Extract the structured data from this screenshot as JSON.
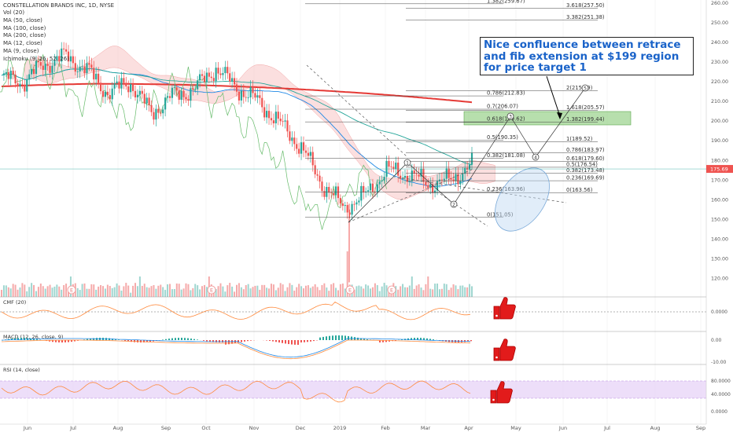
{
  "symbol_header": "CONSTELLATION BRANDS INC, 1D, NYSE",
  "indicators": [
    "Vol (20)",
    "MA (50, close)",
    "MA (100, close)",
    "MA (200, close)",
    "MA (12, close)",
    "MA (9, close)",
    "Ichimoku (9, 26, 52, 26)"
  ],
  "callout_text": "Nice confluence between retrace and fib extension at $199 region for price target 1",
  "colors": {
    "up": "#26a69a",
    "down": "#ef5350",
    "ma200": "#e53935",
    "callout_text": "#1a63c9",
    "target_zone": "#7cc56a",
    "rsi_band": "#e9d6f7",
    "cmf": "#ff8a3d",
    "macd": "#1e88e5",
    "signal": "#ff8a3d",
    "thumb": "#e21b1b"
  },
  "current_price_label": "175.69",
  "chart_data": {
    "type": "line",
    "x_ticks": [
      "Jun",
      "Jul",
      "Aug",
      "Sep",
      "Oct",
      "Nov",
      "Dec",
      "2019",
      "Feb",
      "Mar",
      "Apr",
      "May",
      "Jun",
      "Jul",
      "Aug",
      "Sep"
    ],
    "y_ticks": [
      "260.00",
      "250.00",
      "240.00",
      "230.00",
      "220.00",
      "210.00",
      "200.00",
      "190.00",
      "180.00",
      "170.00",
      "160.00",
      "150.00",
      "140.00",
      "130.00",
      "120.00"
    ],
    "ylim": [
      115,
      260
    ],
    "price_series": [
      [
        "Jun",
        222
      ],
      [
        "Jun",
        220
      ],
      [
        "Jul",
        229
      ],
      [
        "Jul",
        233
      ],
      [
        "Jul",
        226
      ],
      [
        "Aug",
        214
      ],
      [
        "Aug",
        220
      ],
      [
        "Sep",
        204
      ],
      [
        "Sep",
        213
      ],
      [
        "Sep",
        216
      ],
      [
        "Oct",
        227
      ],
      [
        "Oct",
        217
      ],
      [
        "Nov",
        210
      ],
      [
        "Nov",
        199
      ],
      [
        "Dec",
        187
      ],
      [
        "Dec",
        168
      ],
      [
        "2019",
        156
      ],
      [
        "2019",
        162
      ],
      [
        "Feb",
        175
      ],
      [
        "Feb",
        173
      ],
      [
        "Mar",
        168
      ],
      [
        "Mar",
        170
      ],
      [
        "Apr",
        178
      ]
    ],
    "fib_retracement": [
      {
        "label": "0(151.05)",
        "value": 151.05
      },
      {
        "label": "0.236(163.96)",
        "value": 163.96
      },
      {
        "label": "0.382(181.08)",
        "value": 181.08
      },
      {
        "label": "0.5(190.35)",
        "value": 190.35
      },
      {
        "label": "0.618(199.62)",
        "value": 199.62
      },
      {
        "label": "0.7(206.07)",
        "value": 206.07
      },
      {
        "label": "0.786(212.83)",
        "value": 212.83
      },
      {
        "label": "1.382(259.67)",
        "value": 259.67
      }
    ],
    "fib_extension": [
      {
        "label": "0(163.56)",
        "value": 163.56
      },
      {
        "label": "0.236(169.69)",
        "value": 169.69
      },
      {
        "label": "0.382(173.48)",
        "value": 173.48
      },
      {
        "label": "0.5(176.54)",
        "value": 176.54
      },
      {
        "label": "0.618(179.60)",
        "value": 179.6
      },
      {
        "label": "0.786(183.97)",
        "value": 183.97
      },
      {
        "label": "1(189.52)",
        "value": 189.52
      },
      {
        "label": "1.382(199.44)",
        "value": 199.44
      },
      {
        "label": "1.618(205.57)",
        "value": 205.57
      },
      {
        "label": "2(215.49)",
        "value": 215.49
      },
      {
        "label": "3.382(251.38)",
        "value": 251.38
      },
      {
        "label": "3.618(257.50)",
        "value": 257.5
      }
    ],
    "wave_labels": [
      "1",
      "2",
      "3",
      "4",
      "5"
    ],
    "event_marker": "E",
    "target_zone": [
      199.44,
      205.57
    ],
    "panels": [
      {
        "name": "CMF (20)",
        "ticks": [
          "0.0000"
        ]
      },
      {
        "name": "MACD (12, 26, close, 9)",
        "ticks": [
          "0.00",
          "-10.00"
        ]
      },
      {
        "name": "RSI (14, close)",
        "ticks": [
          "80.0000",
          "40.0000",
          "0.0000"
        ]
      }
    ]
  }
}
